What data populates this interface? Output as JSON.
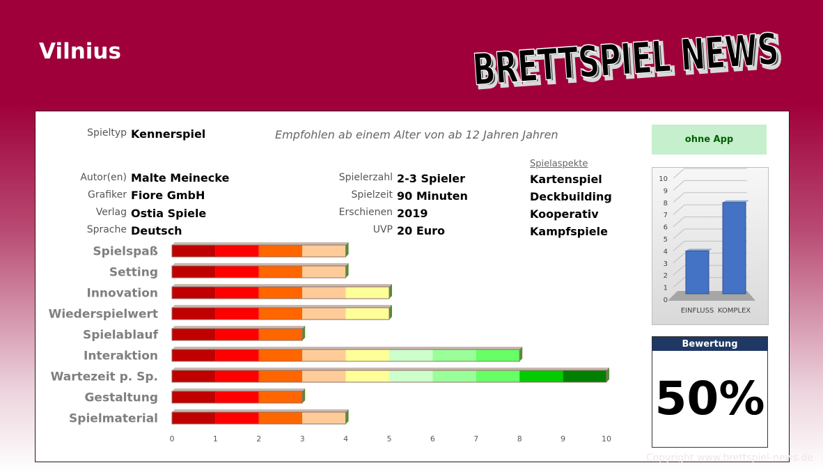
{
  "game": {
    "title": "Vilnius"
  },
  "logo": {
    "text": "BRETTSPIEL NEWS"
  },
  "info": {
    "spieltyp_label": "Spieltyp",
    "spieltyp": "Kennerspiel",
    "age_note": "Empfohlen ab einem Alter von ab 12 Jahren Jahren",
    "left": [
      {
        "label": "Autor(en)",
        "value": "Malte Meinecke"
      },
      {
        "label": "Grafiker",
        "value": "Fiore GmbH"
      },
      {
        "label": "Verlag",
        "value": "Ostia Spiele"
      },
      {
        "label": "Sprache",
        "value": "Deutsch"
      }
    ],
    "middle": [
      {
        "label": "Spielerzahl",
        "value": "2-3 Spieler"
      },
      {
        "label": "Spielzeit",
        "value": "90 Minuten"
      },
      {
        "label": "Erschienen",
        "value": "2019"
      },
      {
        "label": "UVP",
        "value": "20 Euro"
      }
    ],
    "aspects_label": "Spielaspekte",
    "aspects": [
      "Kartenspiel",
      "Deckbuilding",
      "Kooperativ",
      "Kampfspiele"
    ]
  },
  "app_badge": "ohne App",
  "rating": {
    "label": "Bewertung",
    "value": "50%"
  },
  "copyright": "Copyright www.brettspiel-news.de",
  "colors": {
    "brand": "#a0003a",
    "bar_segments": [
      "#c00000",
      "#ff0000",
      "#ff6600",
      "#ffcc99",
      "#ffff99",
      "#ccffcc",
      "#99ff99",
      "#66ff66",
      "#00cc00",
      "#008000"
    ],
    "mini_bars": "#4472c4",
    "badge_bg": "#c6efce",
    "rating_head": "#1f3864"
  },
  "chart_data": [
    {
      "type": "bar",
      "orientation": "horizontal",
      "categories": [
        "Spielspaß",
        "Setting",
        "Innovation",
        "Wiederspielwert",
        "Spielablauf",
        "Interaktion",
        "Wartezeit p. Sp.",
        "Gestaltung",
        "Spielmaterial"
      ],
      "values": [
        4,
        4,
        5,
        5,
        3,
        8,
        10,
        3,
        4
      ],
      "xlim": [
        0,
        10
      ],
      "xticks": [
        "0",
        "1",
        "2",
        "3",
        "4",
        "5",
        "6",
        "7",
        "8",
        "9",
        "10"
      ]
    },
    {
      "type": "bar",
      "categories": [
        "EINFLUSS",
        "KOMPLEX"
      ],
      "values": [
        4,
        8
      ],
      "ylim": [
        0,
        10
      ],
      "yticks": [
        "0",
        "1",
        "2",
        "3",
        "4",
        "5",
        "6",
        "7",
        "8",
        "9",
        "10"
      ]
    }
  ]
}
